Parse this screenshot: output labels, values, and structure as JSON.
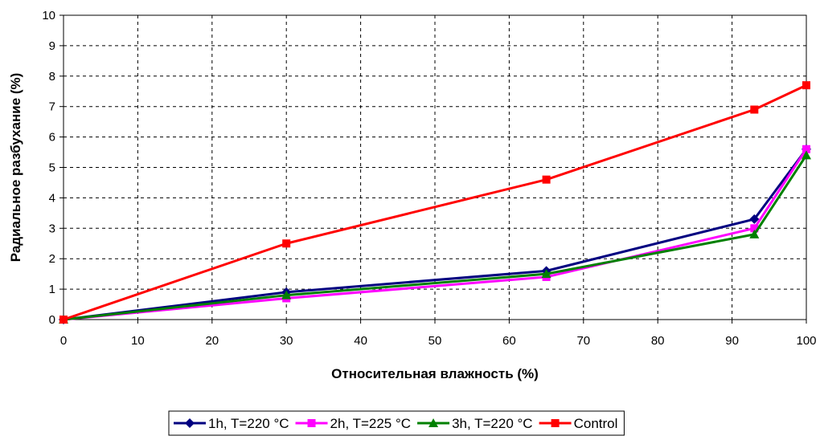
{
  "chart_data": {
    "type": "line",
    "title": "",
    "xlabel": "Относительная влажность (%)",
    "ylabel": "Радиальное разбухание (%)",
    "xlim": [
      0,
      100
    ],
    "ylim": [
      0,
      10
    ],
    "xticks": [
      0,
      10,
      20,
      30,
      40,
      50,
      60,
      70,
      80,
      90,
      100
    ],
    "yticks": [
      0,
      1,
      2,
      3,
      4,
      5,
      6,
      7,
      8,
      9,
      10
    ],
    "grid": true,
    "legend_position": "bottom",
    "series": [
      {
        "name": "1h, T=220 °C",
        "color": "#000080",
        "marker": "diamond",
        "x": [
          0,
          30,
          65,
          93,
          100
        ],
        "values": [
          0,
          0.9,
          1.6,
          3.3,
          5.6
        ]
      },
      {
        "name": "2h, T=225 °C",
        "color": "#FF00FF",
        "marker": "square",
        "x": [
          0,
          30,
          65,
          93,
          100
        ],
        "values": [
          0,
          0.7,
          1.4,
          3.0,
          5.6
        ]
      },
      {
        "name": "3h, T=220 °C",
        "color": "#008000",
        "marker": "triangle",
        "x": [
          0,
          30,
          65,
          93,
          100
        ],
        "values": [
          0,
          0.8,
          1.5,
          2.8,
          5.4
        ]
      },
      {
        "name": "Control",
        "color": "#FF0000",
        "marker": "square",
        "x": [
          0,
          30,
          65,
          93,
          100
        ],
        "values": [
          0,
          2.5,
          4.6,
          6.9,
          7.7
        ]
      }
    ]
  }
}
